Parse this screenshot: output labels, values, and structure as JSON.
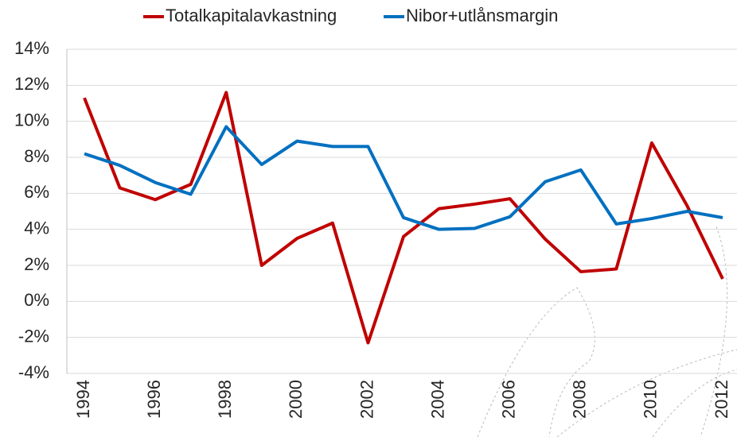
{
  "chart_data": {
    "type": "line",
    "x": [
      1994,
      1995,
      1996,
      1997,
      1998,
      1999,
      2000,
      2001,
      2002,
      2003,
      2004,
      2005,
      2006,
      2007,
      2008,
      2009,
      2010,
      2011,
      2012
    ],
    "series": [
      {
        "name": "Totalkapitalavkastning",
        "color": "#c00000",
        "values": [
          11.3,
          6.3,
          5.65,
          6.5,
          11.6,
          2.0,
          3.5,
          4.35,
          -2.3,
          3.6,
          5.15,
          5.4,
          5.7,
          3.45,
          1.65,
          1.8,
          8.8,
          5.3,
          1.25
        ]
      },
      {
        "name": "Nibor+utlånsmargin",
        "color": "#0070c0",
        "values": [
          8.2,
          7.55,
          6.6,
          5.95,
          9.7,
          7.6,
          8.9,
          8.6,
          8.6,
          4.65,
          4.0,
          4.05,
          4.7,
          6.65,
          7.3,
          4.3,
          4.6,
          5.0,
          4.65
        ]
      }
    ],
    "xlim": [
      1994,
      2012
    ],
    "xticks": [
      1994,
      1996,
      1998,
      2000,
      2002,
      2004,
      2006,
      2008,
      2010,
      2012
    ],
    "ylim": [
      -4,
      14
    ],
    "yticks": [
      {
        "value": -4,
        "label": "-4%"
      },
      {
        "value": -2,
        "label": "-2%"
      },
      {
        "value": 0,
        "label": "0%"
      },
      {
        "value": 2,
        "label": "2%"
      },
      {
        "value": 4,
        "label": "4%"
      },
      {
        "value": 6,
        "label": "6%"
      },
      {
        "value": 8,
        "label": "8%"
      },
      {
        "value": 10,
        "label": "10%"
      },
      {
        "value": 12,
        "label": "12%"
      },
      {
        "value": 14,
        "label": "14%"
      }
    ],
    "grid": true,
    "legend": "top"
  }
}
